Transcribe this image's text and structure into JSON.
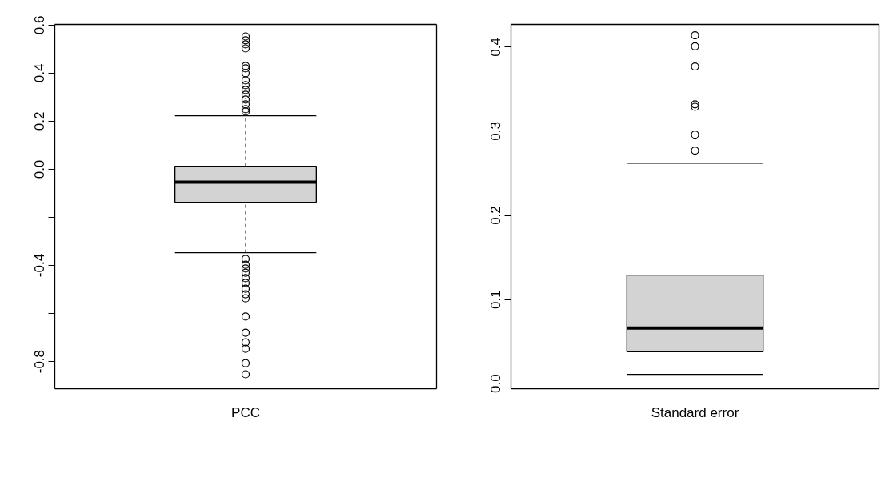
{
  "chart_data": [
    {
      "type": "box",
      "categories": [
        "PCC"
      ],
      "color": "#d3d3d3",
      "grid": false,
      "boxes": [
        {
          "low": -0.347,
          "q1": -0.137,
          "median": -0.053,
          "q3": 0.013,
          "high": 0.223,
          "outliers": [
            0.553,
            0.537,
            0.52,
            0.503,
            0.43,
            0.42,
            0.4,
            0.37,
            0.35,
            0.33,
            0.31,
            0.29,
            0.27,
            0.25,
            0.24,
            -0.373,
            -0.397,
            -0.413,
            -0.43,
            -0.453,
            -0.473,
            -0.497,
            -0.52,
            -0.537,
            -0.613,
            -0.68,
            -0.72,
            -0.747,
            -0.807,
            -0.853
          ]
        }
      ],
      "ylim": [
        -0.913,
        0.603
      ],
      "yticks": [
        {
          "value": -0.8,
          "label": "-0.8"
        },
        {
          "value": -0.6,
          "label": null
        },
        {
          "value": -0.4,
          "label": "-0.4"
        },
        {
          "value": -0.2,
          "label": null
        },
        {
          "value": 0,
          "label": "0.0"
        },
        {
          "value": 0.2,
          "label": "0.2"
        },
        {
          "value": 0.4,
          "label": "0.4"
        },
        {
          "value": 0.6,
          "label": "0.6"
        }
      ]
    },
    {
      "type": "box",
      "categories": [
        "Standard error"
      ],
      "color": "#d3d3d3",
      "grid": false,
      "boxes": [
        {
          "low": 0.011,
          "q1": 0.038,
          "median": 0.066,
          "q3": 0.129,
          "high": 0.262,
          "outliers": [
            0.414,
            0.401,
            0.377,
            0.332,
            0.329,
            0.296,
            0.277
          ]
        }
      ],
      "ylim": [
        -0.006,
        0.427
      ],
      "yticks": [
        {
          "value": 0,
          "label": "0.0"
        },
        {
          "value": 0.1,
          "label": "0.1"
        },
        {
          "value": 0.2,
          "label": "0.2"
        },
        {
          "value": 0.3,
          "label": "0.3"
        },
        {
          "value": 0.4,
          "label": "0.4"
        }
      ]
    }
  ]
}
